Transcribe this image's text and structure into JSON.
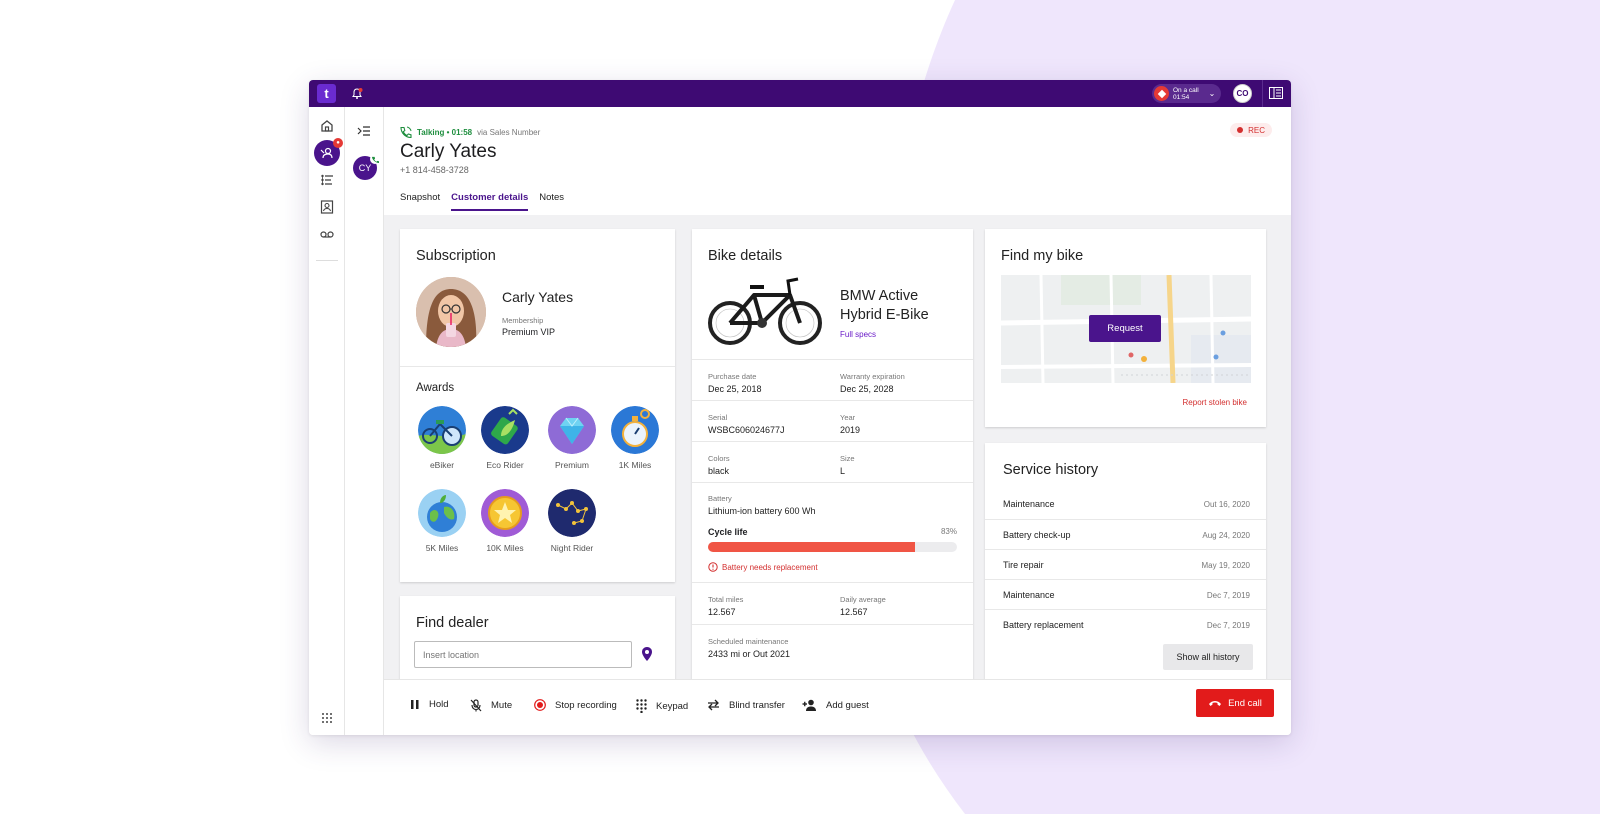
{
  "topbar": {
    "logo": "t",
    "oncall_label": "On a call",
    "oncall_time": "01:54",
    "user_initials": "CO"
  },
  "secnav": {
    "contact_initials": "CY"
  },
  "call": {
    "status": "Talking • 01:58",
    "via": "via Sales Number",
    "rec": "REC",
    "customer_name": "Carly Yates",
    "phone": "+1 814-458-3728",
    "tabs": [
      "Snapshot",
      "Customer details",
      "Notes"
    ],
    "active_tab": "Customer details"
  },
  "subscription": {
    "title": "Subscription",
    "name": "Carly Yates",
    "membership_label": "Membership",
    "membership_value": "Premium VIP",
    "awards_title": "Awards",
    "awards": [
      "eBiker",
      "Eco Rider",
      "Premium",
      "1K Miles",
      "5K Miles",
      "10K Miles",
      "Night Rider"
    ]
  },
  "dealer": {
    "title": "Find dealer",
    "placeholder": "Insert location"
  },
  "bike": {
    "title": "Bike details",
    "model": "BMW Active Hybrid E-Bike",
    "full_specs": "Full specs",
    "purchase_label": "Purchase date",
    "purchase_value": "Dec 25, 2018",
    "warranty_label": "Warranty expiration",
    "warranty_value": "Dec 25, 2028",
    "serial_label": "Serial",
    "serial_value": "WSBC606024677J",
    "year_label": "Year",
    "year_value": "2019",
    "colors_label": "Colors",
    "colors_value": "black",
    "size_label": "Size",
    "size_value": "L",
    "battery_label": "Battery",
    "battery_value": "Lithium-ion battery 600 Wh",
    "cycle_label": "Cycle life",
    "cycle_pct": "83%",
    "cycle_value": 0.83,
    "warning": "Battery needs replacement",
    "total_label": "Total miles",
    "total_value": "12.567",
    "daily_label": "Daily average",
    "daily_value": "12.567",
    "maint_label": "Scheduled maintenance",
    "maint_value": "2433 mi or Out 2021"
  },
  "findbike": {
    "title": "Find my bike",
    "request": "Request",
    "stolen": "Report stolen bike"
  },
  "service": {
    "title": "Service history",
    "items": [
      {
        "name": "Maintenance",
        "date": "Out 16, 2020"
      },
      {
        "name": "Battery check-up",
        "date": "Aug 24, 2020"
      },
      {
        "name": "Tire repair",
        "date": "May 19, 2020"
      },
      {
        "name": "Maintenance",
        "date": "Dec 7, 2019"
      },
      {
        "name": "Battery replacement",
        "date": "Dec 7, 2019"
      }
    ],
    "show_all": "Show all history"
  },
  "callbar": {
    "hold": "Hold",
    "mute": "Mute",
    "stop_recording": "Stop recording",
    "keypad": "Keypad",
    "blind_transfer": "Blind transfer",
    "add_guest": "Add guest",
    "end_call": "End call"
  },
  "colors": {
    "brand": "#3e0a73",
    "accent": "#4a148c",
    "danger": "#e21b1b",
    "success": "#1e8e3e",
    "lavender_bg": "#efe6fc"
  }
}
